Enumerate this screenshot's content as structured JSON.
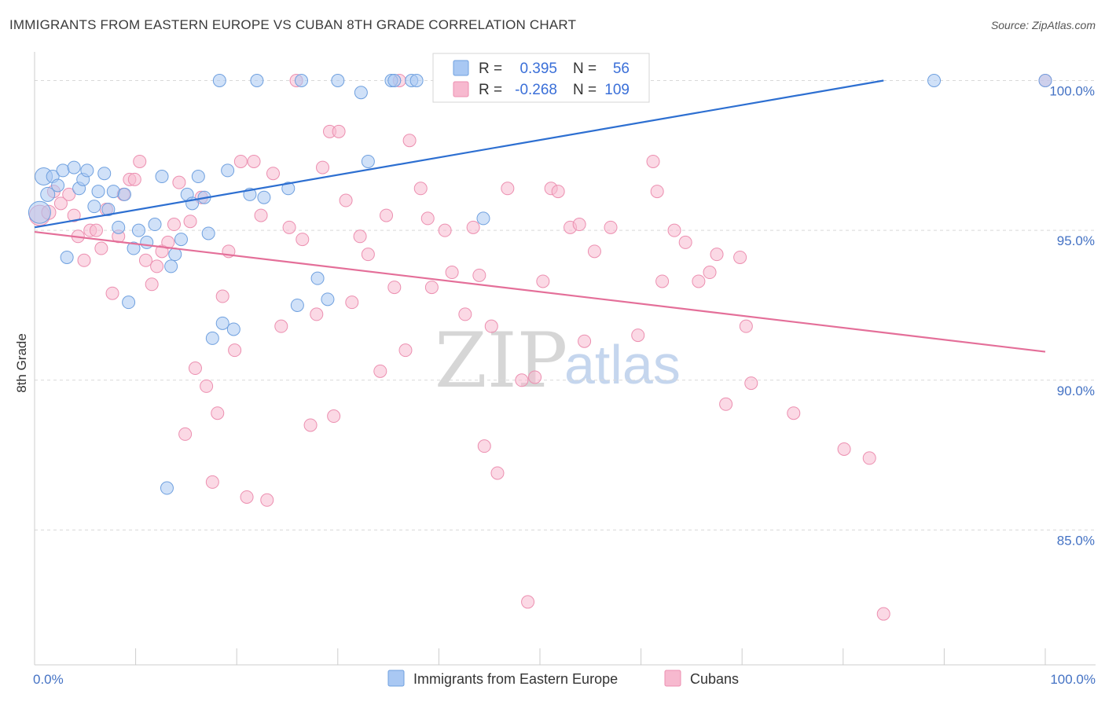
{
  "title": "IMMIGRANTS FROM EASTERN EUROPE VS CUBAN 8TH GRADE CORRELATION CHART",
  "source": "Source: ZipAtlas.com",
  "watermark": {
    "zip": "ZIP",
    "atlas": "atlas"
  },
  "colors": {
    "blue_fill": "#a9c8f3",
    "blue_stroke": "#6fa0df",
    "blue_line": "#2d6fd1",
    "pink_fill": "#f7b9cf",
    "pink_stroke": "#ec8fb0",
    "pink_line": "#e46f99",
    "grid": "#d9d9d9",
    "tick_text": "#4472c4"
  },
  "legend": {
    "rows": [
      {
        "r_label": "R =",
        "r_value": "0.395",
        "n_label": "N =",
        "n_value": "56",
        "series": "blue"
      },
      {
        "r_label": "R =",
        "r_value": "-0.268",
        "n_label": "N =",
        "n_value": "109",
        "series": "pink"
      }
    ]
  },
  "bottom_legend": [
    {
      "label": "Immigrants from Eastern Europe",
      "series": "blue"
    },
    {
      "label": "Cubans",
      "series": "pink"
    }
  ],
  "chart_data": {
    "type": "scatter",
    "title": "IMMIGRANTS FROM EASTERN EUROPE VS CUBAN 8TH GRADE CORRELATION CHART",
    "xlabel": "",
    "ylabel": "8th Grade",
    "xlim": [
      0,
      100
    ],
    "ylim": [
      80.5,
      100.8
    ],
    "x_tick_labels": [
      "0.0%",
      "100.0%"
    ],
    "y_ticks": [
      85,
      90,
      95,
      100
    ],
    "y_tick_labels": [
      "85.0%",
      "90.0%",
      "95.0%",
      "100.0%"
    ],
    "series": [
      {
        "name": "Immigrants from Eastern Europe",
        "color": "blue",
        "trend": {
          "x0": 0,
          "y0": 95.1,
          "x1": 84,
          "y1": 100
        },
        "points": [
          [
            0.5,
            95.6,
            14
          ],
          [
            0.9,
            96.8,
            11
          ],
          [
            1.3,
            96.2,
            9
          ],
          [
            1.8,
            96.8,
            8
          ],
          [
            2.3,
            96.5,
            8
          ],
          [
            2.8,
            97.0,
            8
          ],
          [
            3.2,
            94.1,
            8
          ],
          [
            3.9,
            97.1,
            8
          ],
          [
            4.4,
            96.4,
            8
          ],
          [
            4.8,
            96.7,
            8
          ],
          [
            5.2,
            97.0,
            8
          ],
          [
            5.9,
            95.8,
            8
          ],
          [
            6.3,
            96.3,
            8
          ],
          [
            6.9,
            96.9,
            8
          ],
          [
            7.3,
            95.7,
            8
          ],
          [
            7.8,
            96.3,
            8
          ],
          [
            8.3,
            95.1,
            8
          ],
          [
            8.9,
            96.2,
            8
          ],
          [
            9.3,
            92.6,
            8
          ],
          [
            9.8,
            94.4,
            8
          ],
          [
            10.3,
            95.0,
            8
          ],
          [
            11.1,
            94.6,
            8
          ],
          [
            11.9,
            95.2,
            8
          ],
          [
            12.6,
            96.8,
            8
          ],
          [
            13.1,
            86.4,
            8
          ],
          [
            13.5,
            93.8,
            8
          ],
          [
            13.9,
            94.2,
            8
          ],
          [
            14.5,
            94.7,
            8
          ],
          [
            15.1,
            96.2,
            8
          ],
          [
            15.6,
            95.9,
            8
          ],
          [
            16.2,
            96.8,
            8
          ],
          [
            16.8,
            96.1,
            8
          ],
          [
            17.2,
            94.9,
            8
          ],
          [
            17.6,
            91.4,
            8
          ],
          [
            18.3,
            100.0,
            8
          ],
          [
            18.6,
            91.9,
            8
          ],
          [
            19.1,
            97.0,
            8
          ],
          [
            19.7,
            91.7,
            8
          ],
          [
            21.3,
            96.2,
            8
          ],
          [
            22.0,
            100.0,
            8
          ],
          [
            22.7,
            96.1,
            8
          ],
          [
            25.1,
            96.4,
            8
          ],
          [
            26.0,
            92.5,
            8
          ],
          [
            26.4,
            100.0,
            8
          ],
          [
            28.0,
            93.4,
            8
          ],
          [
            29.0,
            92.7,
            8
          ],
          [
            30.0,
            100.0,
            8
          ],
          [
            32.3,
            99.6,
            8
          ],
          [
            33.0,
            97.3,
            8
          ],
          [
            35.3,
            100.0,
            8
          ],
          [
            35.6,
            100.0,
            8
          ],
          [
            37.3,
            100.0,
            8
          ],
          [
            37.8,
            100.0,
            8
          ],
          [
            44.4,
            95.4,
            8
          ],
          [
            89.0,
            100.0,
            8
          ],
          [
            100.0,
            100.0,
            8
          ]
        ]
      },
      {
        "name": "Cubans",
        "color": "pink",
        "trend": {
          "x0": 0,
          "y0": 94.95,
          "x1": 100,
          "y1": 90.95
        },
        "points": [
          [
            0.5,
            95.5,
            13
          ],
          [
            1.4,
            95.6,
            9
          ],
          [
            1.9,
            96.3,
            8
          ],
          [
            2.6,
            95.9,
            8
          ],
          [
            3.4,
            96.2,
            8
          ],
          [
            3.9,
            95.5,
            8
          ],
          [
            4.3,
            94.8,
            8
          ],
          [
            4.9,
            94.0,
            8
          ],
          [
            5.5,
            95.0,
            8
          ],
          [
            6.1,
            95.0,
            8
          ],
          [
            6.6,
            94.4,
            8
          ],
          [
            7.1,
            95.7,
            8
          ],
          [
            7.7,
            92.9,
            8
          ],
          [
            8.3,
            94.8,
            8
          ],
          [
            8.8,
            96.2,
            8
          ],
          [
            9.4,
            96.7,
            8
          ],
          [
            9.9,
            96.7,
            8
          ],
          [
            10.4,
            97.3,
            8
          ],
          [
            11.0,
            94.0,
            8
          ],
          [
            11.6,
            93.2,
            8
          ],
          [
            12.1,
            93.8,
            8
          ],
          [
            12.6,
            94.3,
            8
          ],
          [
            13.2,
            94.6,
            8
          ],
          [
            13.8,
            95.2,
            8
          ],
          [
            14.3,
            96.6,
            8
          ],
          [
            14.9,
            88.2,
            8
          ],
          [
            15.4,
            95.3,
            8
          ],
          [
            15.9,
            90.4,
            8
          ],
          [
            16.5,
            96.1,
            8
          ],
          [
            17.0,
            89.8,
            8
          ],
          [
            17.6,
            86.6,
            8
          ],
          [
            18.1,
            88.9,
            8
          ],
          [
            18.6,
            92.8,
            8
          ],
          [
            19.2,
            94.3,
            8
          ],
          [
            19.8,
            91.0,
            8
          ],
          [
            20.4,
            97.3,
            8
          ],
          [
            21.0,
            86.1,
            8
          ],
          [
            21.7,
            97.3,
            8
          ],
          [
            22.4,
            95.5,
            8
          ],
          [
            23.0,
            86.0,
            8
          ],
          [
            23.6,
            96.9,
            8
          ],
          [
            24.4,
            91.8,
            8
          ],
          [
            25.2,
            95.1,
            8
          ],
          [
            25.9,
            100.0,
            8
          ],
          [
            26.5,
            94.7,
            8
          ],
          [
            27.3,
            88.5,
            8
          ],
          [
            27.9,
            92.2,
            8
          ],
          [
            28.5,
            97.1,
            8
          ],
          [
            29.2,
            98.3,
            8
          ],
          [
            29.6,
            88.8,
            8
          ],
          [
            30.1,
            98.3,
            8
          ],
          [
            30.8,
            96.0,
            8
          ],
          [
            31.4,
            92.6,
            8
          ],
          [
            32.2,
            94.8,
            8
          ],
          [
            33.0,
            94.2,
            8
          ],
          [
            34.2,
            90.3,
            8
          ],
          [
            34.8,
            95.5,
            8
          ],
          [
            35.6,
            93.1,
            8
          ],
          [
            36.1,
            100.0,
            8
          ],
          [
            36.7,
            91.0,
            8
          ],
          [
            37.1,
            98.0,
            8
          ],
          [
            38.2,
            96.4,
            8
          ],
          [
            38.9,
            95.4,
            8
          ],
          [
            39.3,
            93.1,
            8
          ],
          [
            40.6,
            95.0,
            8
          ],
          [
            41.3,
            93.6,
            8
          ],
          [
            42.6,
            92.2,
            8
          ],
          [
            43.4,
            95.1,
            8
          ],
          [
            44.0,
            93.5,
            8
          ],
          [
            44.5,
            87.8,
            8
          ],
          [
            45.2,
            91.8,
            8
          ],
          [
            45.8,
            86.9,
            8
          ],
          [
            46.8,
            96.4,
            8
          ],
          [
            48.2,
            90.0,
            8
          ],
          [
            48.8,
            82.6,
            8
          ],
          [
            49.5,
            90.1,
            8
          ],
          [
            50.3,
            93.3,
            8
          ],
          [
            51.1,
            96.4,
            8
          ],
          [
            51.8,
            96.3,
            8
          ],
          [
            53.0,
            95.1,
            8
          ],
          [
            53.9,
            95.2,
            8
          ],
          [
            54.4,
            91.3,
            8
          ],
          [
            55.4,
            94.3,
            8
          ],
          [
            57.0,
            95.1,
            8
          ],
          [
            59.7,
            91.5,
            8
          ],
          [
            61.2,
            97.3,
            8
          ],
          [
            61.6,
            96.3,
            8
          ],
          [
            62.1,
            93.3,
            8
          ],
          [
            63.3,
            95.0,
            8
          ],
          [
            64.4,
            94.6,
            8
          ],
          [
            65.7,
            93.3,
            8
          ],
          [
            66.8,
            93.6,
            8
          ],
          [
            67.5,
            94.2,
            8
          ],
          [
            68.4,
            89.2,
            8
          ],
          [
            69.8,
            94.1,
            8
          ],
          [
            70.4,
            91.8,
            8
          ],
          [
            70.9,
            89.9,
            8
          ],
          [
            75.1,
            88.9,
            8
          ],
          [
            80.1,
            87.7,
            8
          ],
          [
            82.6,
            87.4,
            8
          ],
          [
            84.0,
            82.2,
            8
          ],
          [
            100.0,
            100.0,
            8
          ]
        ]
      }
    ]
  }
}
